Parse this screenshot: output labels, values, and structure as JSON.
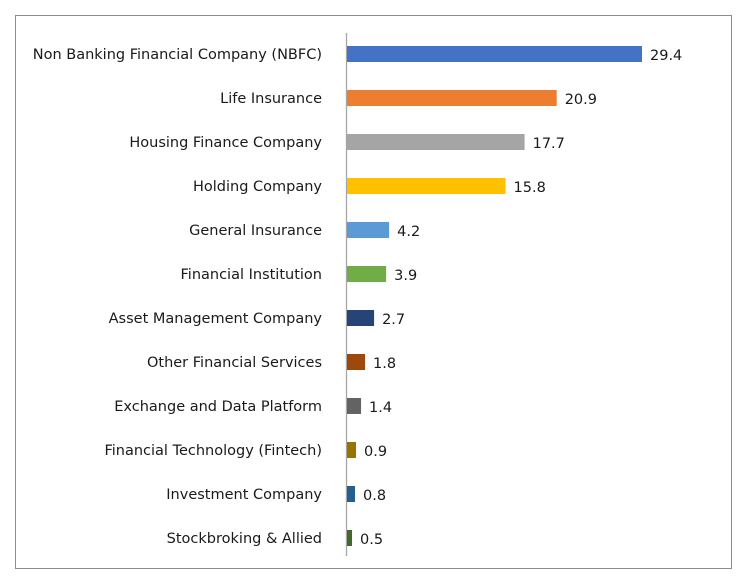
{
  "chart_data": {
    "type": "bar",
    "orientation": "horizontal",
    "categories": [
      "Non Banking Financial Company (NBFC)",
      "Life Insurance",
      "Housing Finance Company",
      "Holding Company",
      "General Insurance",
      "Financial Institution",
      "Asset Management Company",
      "Other Financial Services",
      "Exchange and Data Platform",
      "Financial Technology (Fintech)",
      "Investment Company",
      "Stockbroking & Allied"
    ],
    "values": [
      29.4,
      20.9,
      17.7,
      15.8,
      4.2,
      3.9,
      2.7,
      1.8,
      1.4,
      0.9,
      0.8,
      0.5
    ],
    "value_labels": [
      "29.4",
      "20.9",
      "17.7",
      "15.8",
      "4.2",
      "3.9",
      "2.7",
      "1.8",
      "1.4",
      "0.9",
      "0.8",
      "0.5"
    ],
    "colors": [
      "#4472c4",
      "#ed7d31",
      "#a5a5a5",
      "#ffc000",
      "#5b9bd5",
      "#70ad47",
      "#264478",
      "#9e480e",
      "#636363",
      "#997300",
      "#255e91",
      "#43682b"
    ],
    "xlim": [
      0,
      30
    ],
    "grid": false,
    "legend": "none",
    "title": "",
    "xlabel": "",
    "ylabel": ""
  }
}
